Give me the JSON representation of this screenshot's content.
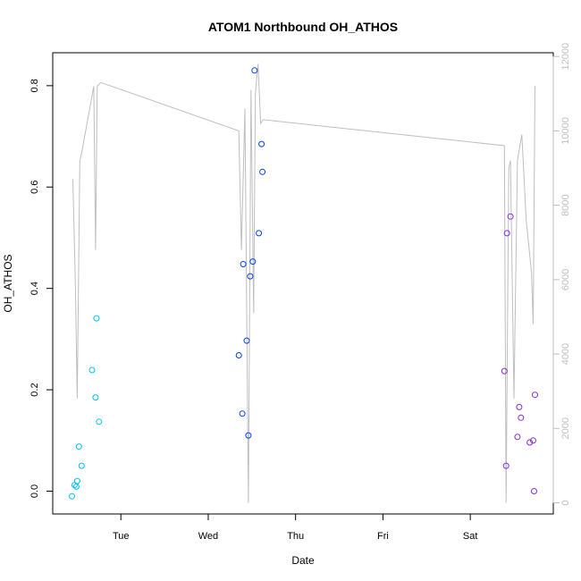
{
  "chart_data": {
    "type": "scatter",
    "title": "ATOM1 Northbound OH_ATHOS",
    "xlabel": "Date",
    "ylabel": "OH_ATHOS",
    "x_ticks": [
      "Tue",
      "Wed",
      "Thu",
      "Fri",
      "Sat"
    ],
    "xlim_days": [
      -0.78,
      4.95
    ],
    "ylim": [
      -0.045,
      0.865
    ],
    "y_ticks": [
      0.0,
      0.2,
      0.4,
      0.6,
      0.8
    ],
    "y2_lim": [
      -300,
      12100
    ],
    "y2_ticks": [
      0,
      2000,
      4000,
      6000,
      8000,
      10000,
      12000
    ],
    "grid": false,
    "colors": {
      "series_1": "#00bfff",
      "series_2": "#0040ff",
      "series_3": "#8a2be2",
      "altitude_line": "#bebebe",
      "axis": "#000000",
      "right_axis": "#bebebe"
    },
    "series": [
      {
        "color": "#00bfff",
        "points": [
          [
            -0.56,
            -0.01
          ],
          [
            -0.53,
            0.012
          ],
          [
            -0.51,
            0.009
          ],
          [
            -0.5,
            0.02
          ],
          [
            -0.48,
            0.088
          ],
          [
            -0.45,
            0.05
          ],
          [
            -0.33,
            0.239
          ],
          [
            -0.29,
            0.185
          ],
          [
            -0.28,
            0.341
          ],
          [
            -0.25,
            0.137
          ]
        ]
      },
      {
        "color": "#0040ff",
        "points": [
          [
            1.35,
            0.268
          ],
          [
            1.39,
            0.153
          ],
          [
            1.4,
            0.448
          ],
          [
            1.44,
            0.297
          ],
          [
            1.46,
            0.11
          ],
          [
            1.48,
            0.424
          ],
          [
            1.51,
            0.453
          ],
          [
            1.53,
            0.83
          ],
          [
            1.58,
            0.509
          ],
          [
            1.61,
            0.685
          ],
          [
            1.62,
            0.63
          ]
        ]
      },
      {
        "color": "#8a2be2",
        "points": [
          [
            4.39,
            0.237
          ],
          [
            4.41,
            0.05
          ],
          [
            4.42,
            0.509
          ],
          [
            4.46,
            0.542
          ],
          [
            4.54,
            0.107
          ],
          [
            4.56,
            0.166
          ],
          [
            4.58,
            0.145
          ],
          [
            4.68,
            0.096
          ],
          [
            4.72,
            0.1
          ],
          [
            4.73,
            0.0
          ],
          [
            4.74,
            0.19
          ]
        ]
      }
    ],
    "altitude_line": [
      [
        -0.55,
        8700
      ],
      [
        -0.52,
        5800
      ],
      [
        -0.5,
        2800
      ],
      [
        -0.47,
        9200
      ],
      [
        -0.45,
        9400
      ],
      [
        -0.31,
        11200
      ],
      [
        -0.29,
        6800
      ],
      [
        -0.27,
        11200
      ],
      [
        -0.23,
        11300
      ],
      [
        1.35,
        10000
      ],
      [
        1.38,
        6800
      ],
      [
        1.42,
        10600
      ],
      [
        1.46,
        0
      ],
      [
        1.49,
        11100
      ],
      [
        1.52,
        5100
      ],
      [
        1.54,
        11000
      ],
      [
        1.57,
        11800
      ],
      [
        1.6,
        10200
      ],
      [
        1.63,
        10300
      ],
      [
        4.39,
        9600
      ],
      [
        4.41,
        0
      ],
      [
        4.44,
        9000
      ],
      [
        4.46,
        9200
      ],
      [
        4.5,
        2800
      ],
      [
        4.54,
        9200
      ],
      [
        4.59,
        9900
      ],
      [
        4.64,
        7600
      ],
      [
        4.7,
        6200
      ],
      [
        4.72,
        4800
      ],
      [
        4.74,
        11200
      ]
    ]
  }
}
